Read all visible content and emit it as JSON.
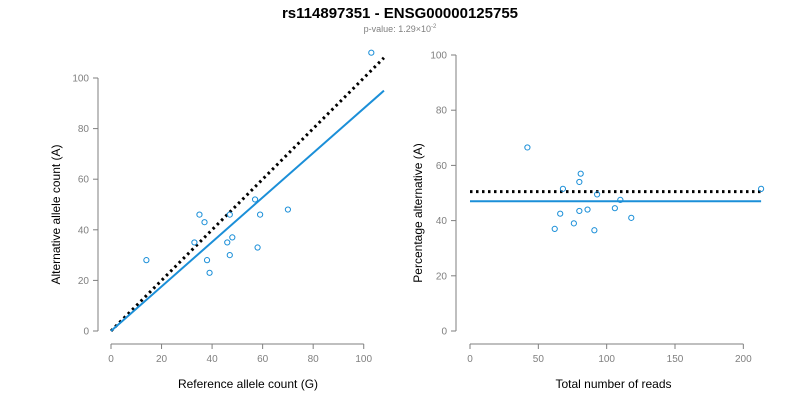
{
  "title": "rs114897351 - ENSG00000125755",
  "subtitle": {
    "prefix": "p-value: 1.29×10",
    "exponent": "-2"
  },
  "colors": {
    "points": "#1b8fd8",
    "fit_line": "#1b8fd8",
    "reference_line": "#000000",
    "axes": "#7f7f7f"
  },
  "chart_data": [
    {
      "type": "scatter",
      "xlabel": "Reference allele count (G)",
      "ylabel": "Alternative allele count (A)",
      "xlim": [
        0,
        110
      ],
      "ylim": [
        0,
        100
      ],
      "xticks": [
        0,
        20,
        40,
        60,
        80,
        100
      ],
      "yticks": [
        0,
        20,
        40,
        60,
        80,
        100
      ],
      "grid": false,
      "points": [
        {
          "x": 14,
          "y": 28
        },
        {
          "x": 33,
          "y": 35
        },
        {
          "x": 35,
          "y": 46
        },
        {
          "x": 37,
          "y": 43
        },
        {
          "x": 38,
          "y": 28
        },
        {
          "x": 39,
          "y": 23
        },
        {
          "x": 46,
          "y": 35
        },
        {
          "x": 47,
          "y": 46
        },
        {
          "x": 47,
          "y": 30
        },
        {
          "x": 48,
          "y": 37
        },
        {
          "x": 57,
          "y": 52
        },
        {
          "x": 58,
          "y": 33
        },
        {
          "x": 59,
          "y": 46
        },
        {
          "x": 70,
          "y": 48
        },
        {
          "x": 103,
          "y": 110
        }
      ],
      "lines": [
        {
          "style": "dotted",
          "color": "#000000",
          "x": [
            0,
            108
          ],
          "y": [
            0,
            108
          ]
        },
        {
          "style": "solid",
          "color": "#1b8fd8",
          "x": [
            0,
            108
          ],
          "y": [
            0,
            95
          ]
        }
      ]
    },
    {
      "type": "scatter",
      "xlabel": "Total number of reads",
      "ylabel": "Percentage alternative (A)",
      "xlim": [
        0,
        210
      ],
      "ylim": [
        0,
        100
      ],
      "xticks": [
        0,
        50,
        100,
        150,
        200
      ],
      "yticks": [
        0,
        20,
        40,
        60,
        80,
        100
      ],
      "grid": false,
      "points": [
        {
          "x": 42,
          "y": 66.5
        },
        {
          "x": 62,
          "y": 37
        },
        {
          "x": 66,
          "y": 42.5
        },
        {
          "x": 68,
          "y": 51.5
        },
        {
          "x": 76,
          "y": 39
        },
        {
          "x": 80,
          "y": 43.5
        },
        {
          "x": 80,
          "y": 54
        },
        {
          "x": 81,
          "y": 57
        },
        {
          "x": 86,
          "y": 44
        },
        {
          "x": 91,
          "y": 36.5
        },
        {
          "x": 93,
          "y": 49.5
        },
        {
          "x": 106,
          "y": 44.5
        },
        {
          "x": 110,
          "y": 47.5
        },
        {
          "x": 118,
          "y": 41
        },
        {
          "x": 213,
          "y": 51.5
        }
      ],
      "lines": [
        {
          "style": "dotted",
          "color": "#000000",
          "x": [
            0,
            213
          ],
          "y": [
            50.5,
            50.5
          ]
        },
        {
          "style": "solid",
          "color": "#1b8fd8",
          "x": [
            0,
            213
          ],
          "y": [
            47,
            47
          ]
        }
      ]
    }
  ]
}
